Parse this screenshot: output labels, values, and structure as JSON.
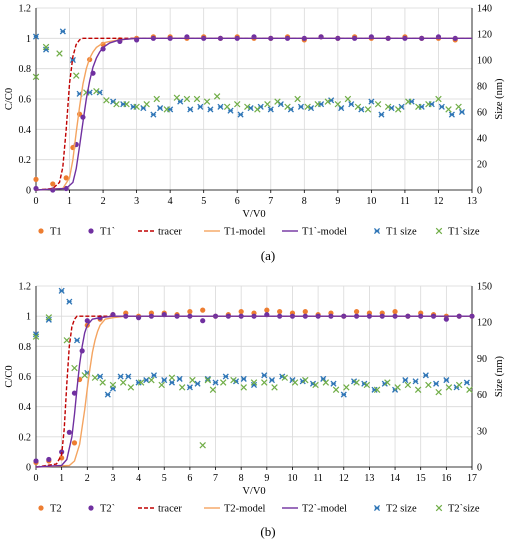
{
  "chart_data": [
    {
      "panel_label": "(a)",
      "type": "scatter",
      "xlabel": "V/V0",
      "ylabel": "C/C0",
      "y2label": "Size (nm)",
      "xlim": [
        0,
        13
      ],
      "xticks": [
        0,
        1,
        2,
        3,
        4,
        5,
        6,
        7,
        8,
        9,
        10,
        11,
        12,
        13
      ],
      "ylim": [
        0,
        1.2
      ],
      "yticks": [
        0,
        0.2,
        0.4,
        0.6,
        0.8,
        1,
        1.2
      ],
      "y2lim": [
        0,
        140
      ],
      "y2ticks": [
        0,
        20,
        40,
        60,
        80,
        100,
        120,
        140
      ],
      "grid": true,
      "legend_position": "bottom",
      "series": [
        {
          "name": "T1",
          "kind": "points",
          "marker": "circle",
          "color": "#ed7d31",
          "axis": "left",
          "x": [
            0,
            0.5,
            0.9,
            1.1,
            1.3,
            1.6,
            2,
            2.5,
            3,
            3.5,
            4,
            4.5,
            5,
            5.5,
            6,
            6.5,
            7,
            7.5,
            8,
            8.5,
            9,
            9.5,
            10,
            10.5,
            11,
            11.5,
            12,
            12.5
          ],
          "y": [
            0.07,
            0.04,
            0.08,
            0.28,
            0.5,
            0.86,
            0.96,
            0.99,
            1.0,
            1.01,
            1.01,
            1.0,
            1.01,
            1.0,
            1.01,
            1.0,
            1.0,
            1.01,
            0.99,
            1.01,
            1.0,
            1.01,
            1.0,
            1.0,
            1.01,
            1.0,
            1.0,
            0.99
          ]
        },
        {
          "name": "T1`",
          "kind": "points",
          "marker": "circle",
          "color": "#7030a0",
          "axis": "left",
          "x": [
            0,
            0.5,
            0.9,
            1.2,
            1.4,
            1.7,
            2,
            2.5,
            3,
            3.5,
            4,
            4.5,
            5,
            5.5,
            6,
            6.5,
            7,
            7.5,
            8,
            8.5,
            9,
            9.5,
            10,
            10.5,
            11,
            11.5,
            12,
            12.5
          ],
          "y": [
            0.01,
            0.0,
            0.01,
            0.3,
            0.48,
            0.77,
            0.93,
            0.98,
            0.99,
            1.0,
            1.0,
            1.01,
            1.0,
            1.0,
            1.0,
            1.01,
            1.0,
            1.0,
            1.0,
            1.01,
            1.0,
            1.0,
            1.01,
            1.0,
            1.0,
            1.0,
            1.01,
            1.0
          ]
        },
        {
          "name": "tracer",
          "kind": "line",
          "dash": true,
          "color": "#c00000",
          "axis": "left",
          "x": [
            0,
            0.5,
            0.7,
            0.8,
            0.9,
            1.0,
            1.1,
            1.2,
            1.3,
            1.4,
            1.5,
            1.7,
            2,
            13
          ],
          "y": [
            0,
            0.01,
            0.05,
            0.15,
            0.4,
            0.7,
            0.88,
            0.96,
            0.99,
            1.0,
            1.0,
            1.0,
            1.0,
            1.0
          ]
        },
        {
          "name": "T1-model",
          "kind": "line",
          "dash": false,
          "color": "#f4a460",
          "axis": "left",
          "x": [
            0,
            0.8,
            1.0,
            1.1,
            1.2,
            1.3,
            1.4,
            1.5,
            1.6,
            1.7,
            1.8,
            2.0,
            2.2,
            2.5,
            3,
            13
          ],
          "y": [
            0,
            0.01,
            0.08,
            0.2,
            0.38,
            0.55,
            0.7,
            0.8,
            0.87,
            0.91,
            0.94,
            0.97,
            0.98,
            0.99,
            1.0,
            1.0
          ]
        },
        {
          "name": "T1`-model",
          "kind": "line",
          "dash": false,
          "color": "#7030a0",
          "axis": "left",
          "x": [
            0,
            0.9,
            1.1,
            1.2,
            1.3,
            1.4,
            1.5,
            1.6,
            1.7,
            1.8,
            1.9,
            2.0,
            2.2,
            2.5,
            3,
            13
          ],
          "y": [
            0,
            0.01,
            0.05,
            0.14,
            0.29,
            0.45,
            0.6,
            0.72,
            0.81,
            0.87,
            0.91,
            0.94,
            0.97,
            0.99,
            1.0,
            1.0
          ]
        },
        {
          "name": "T1 size",
          "kind": "points",
          "marker": "star",
          "color": "#2e75b6",
          "axis": "right",
          "x": [
            0,
            0.3,
            0.8,
            1.1,
            1.3,
            1.6,
            1.9,
            2.3,
            2.6,
            2.9,
            3.2,
            3.5,
            3.7,
            4.0,
            4.3,
            4.6,
            4.9,
            5.2,
            5.5,
            5.8,
            6.1,
            6.4,
            6.7,
            7.0,
            7.3,
            7.6,
            7.9,
            8.2,
            8.5,
            8.8,
            9.1,
            9.4,
            9.7,
            10.0,
            10.3,
            10.6,
            10.9,
            11.2,
            11.5,
            11.8,
            12.1,
            12.4,
            12.7
          ],
          "y": [
            118,
            108,
            122,
            100,
            74,
            75,
            75,
            68,
            66,
            64,
            63,
            58,
            63,
            62,
            68,
            62,
            64,
            62,
            64,
            61,
            58,
            63,
            64,
            62,
            66,
            62,
            64,
            63,
            66,
            69,
            63,
            66,
            62,
            68,
            58,
            63,
            64,
            68,
            64,
            66,
            64,
            58,
            60
          ]
        },
        {
          "name": "T1`size",
          "kind": "points",
          "marker": "x",
          "color": "#70ad47",
          "axis": "right",
          "x": [
            0,
            0.3,
            0.7,
            1.2,
            1.5,
            1.8,
            2.1,
            2.4,
            2.7,
            3.0,
            3.3,
            3.6,
            3.9,
            4.2,
            4.5,
            4.8,
            5.1,
            5.4,
            5.7,
            6.0,
            6.3,
            6.6,
            6.9,
            7.2,
            7.5,
            7.8,
            8.1,
            8.4,
            8.7,
            9.0,
            9.3,
            9.6,
            9.9,
            10.2,
            10.5,
            10.8,
            11.1,
            11.4,
            11.7,
            12.0,
            12.3,
            12.6
          ],
          "y": [
            87,
            110,
            105,
            88,
            75,
            76,
            69,
            66,
            66,
            64,
            66,
            70,
            62,
            71,
            70,
            70,
            68,
            72,
            64,
            66,
            64,
            62,
            66,
            68,
            64,
            70,
            64,
            66,
            68,
            66,
            70,
            64,
            62,
            66,
            64,
            62,
            68,
            64,
            66,
            70,
            62,
            64
          ]
        }
      ]
    },
    {
      "panel_label": "(b)",
      "type": "scatter",
      "xlabel": "V/V0",
      "ylabel": "C/C0",
      "y2label": "Size (nm)",
      "xlim": [
        0,
        17
      ],
      "xticks": [
        0,
        1,
        2,
        3,
        4,
        5,
        6,
        7,
        8,
        9,
        10,
        11,
        12,
        13,
        14,
        15,
        16,
        17
      ],
      "ylim": [
        0,
        1.2
      ],
      "yticks": [
        0,
        0.2,
        0.4,
        0.6,
        0.8,
        1,
        1.2
      ],
      "y2lim": [
        0,
        150
      ],
      "y2ticks": [
        0,
        30,
        60,
        90,
        120,
        150
      ],
      "grid": true,
      "legend_position": "bottom",
      "series": [
        {
          "name": "T2",
          "kind": "points",
          "marker": "circle",
          "color": "#ed7d31",
          "axis": "left",
          "x": [
            0,
            0.5,
            1.0,
            1.5,
            1.7,
            2.0,
            2.5,
            3,
            3.5,
            4,
            4.5,
            5,
            5.5,
            6,
            6.5,
            7,
            7.5,
            8,
            8.5,
            9,
            9.5,
            10,
            10.5,
            11,
            11.5,
            12,
            12.5,
            13,
            13.5,
            14,
            14.5,
            15,
            15.5,
            16,
            16.5,
            17
          ],
          "y": [
            0.03,
            0.04,
            0.06,
            0.16,
            0.58,
            0.94,
            0.98,
            1.01,
            1.02,
            1.0,
            1.02,
            1.02,
            1.01,
            1.03,
            1.04,
            1.0,
            1.01,
            1.03,
            1.02,
            1.04,
            1.03,
            1.02,
            1.03,
            1.01,
            1.02,
            1.0,
            1.03,
            1.02,
            1.02,
            1.03,
            1.0,
            1.02,
            1.01,
            1.0,
            1.0,
            1.0
          ]
        },
        {
          "name": "T2`",
          "kind": "points",
          "marker": "circle",
          "color": "#7030a0",
          "axis": "left",
          "x": [
            0,
            0.5,
            1.0,
            1.3,
            1.5,
            1.8,
            2.0,
            2.5,
            3,
            3.5,
            4,
            4.5,
            5,
            5.5,
            6,
            6.5,
            7,
            7.5,
            8,
            8.5,
            9,
            9.5,
            10,
            10.5,
            11,
            11.5,
            12,
            12.5,
            13,
            13.5,
            14,
            14.5,
            15,
            15.5,
            16,
            16.5,
            17
          ],
          "y": [
            0.04,
            0.05,
            0.1,
            0.23,
            0.49,
            0.77,
            0.97,
            0.99,
            1.01,
            1.0,
            0.99,
            1.0,
            1.01,
            1.0,
            1.0,
            0.97,
            1.0,
            1.0,
            1.0,
            1.0,
            1.01,
            1.0,
            1.0,
            1.0,
            1.0,
            1.0,
            1.0,
            1.0,
            1.0,
            1.0,
            1.0,
            1.0,
            1.0,
            1.0,
            0.98,
            1.0,
            1.0
          ]
        },
        {
          "name": "tracer",
          "kind": "line",
          "dash": true,
          "color": "#c00000",
          "axis": "left",
          "x": [
            0,
            0.8,
            1.0,
            1.1,
            1.2,
            1.3,
            1.4,
            1.5,
            1.6,
            1.8,
            2,
            17
          ],
          "y": [
            0,
            0.02,
            0.08,
            0.25,
            0.55,
            0.8,
            0.93,
            0.98,
            1.0,
            1.0,
            1.0,
            1.0
          ]
        },
        {
          "name": "T2-model",
          "kind": "line",
          "dash": false,
          "color": "#f4a460",
          "axis": "left",
          "x": [
            0,
            1.3,
            1.5,
            1.7,
            1.9,
            2.0,
            2.1,
            2.2,
            2.3,
            2.4,
            2.5,
            2.7,
            3.0,
            3.5,
            17
          ],
          "y": [
            0,
            0.01,
            0.04,
            0.15,
            0.38,
            0.52,
            0.65,
            0.76,
            0.84,
            0.9,
            0.94,
            0.98,
            0.99,
            1.0,
            1.0
          ]
        },
        {
          "name": "T2`-model",
          "kind": "line",
          "dash": false,
          "color": "#7030a0",
          "axis": "left",
          "x": [
            0,
            1.0,
            1.2,
            1.4,
            1.5,
            1.6,
            1.7,
            1.8,
            1.9,
            2.0,
            2.2,
            2.5,
            3,
            17
          ],
          "y": [
            0,
            0.01,
            0.05,
            0.2,
            0.35,
            0.52,
            0.68,
            0.8,
            0.89,
            0.94,
            0.98,
            0.99,
            1.0,
            1.0
          ]
        },
        {
          "name": "T2 size",
          "kind": "points",
          "marker": "star",
          "color": "#2e75b6",
          "axis": "right",
          "x": [
            0,
            0.5,
            1.0,
            1.3,
            1.6,
            2.0,
            2.5,
            2.8,
            3.0,
            3.3,
            3.6,
            4.0,
            4.3,
            4.6,
            5.0,
            5.3,
            5.6,
            6.0,
            6.3,
            6.7,
            7.0,
            7.4,
            7.8,
            8.1,
            8.5,
            8.9,
            9.2,
            9.6,
            10.0,
            10.4,
            10.8,
            11.2,
            11.6,
            12.0,
            12.4,
            12.8,
            13.2,
            13.6,
            14.0,
            14.4,
            14.8,
            15.2,
            15.6,
            16.0,
            16.4,
            16.8
          ],
          "y": [
            110,
            122,
            146,
            137,
            105,
            78,
            75,
            60,
            65,
            75,
            75,
            70,
            72,
            76,
            72,
            70,
            73,
            66,
            69,
            73,
            70,
            75,
            71,
            73,
            68,
            76,
            72,
            75,
            72,
            71,
            69,
            73,
            69,
            60,
            71,
            69,
            64,
            69,
            64,
            72,
            71,
            76,
            69,
            72,
            66,
            70
          ]
        },
        {
          "name": "T2`size",
          "kind": "points",
          "marker": "x",
          "color": "#70ad47",
          "axis": "right",
          "x": [
            0,
            0.5,
            1.2,
            1.5,
            1.9,
            2.3,
            2.6,
            3.0,
            3.4,
            3.7,
            4.1,
            4.5,
            4.9,
            5.3,
            5.7,
            6.1,
            6.5,
            6.7,
            6.9,
            7.3,
            7.7,
            8.1,
            8.5,
            8.9,
            9.3,
            9.7,
            10.1,
            10.5,
            10.9,
            11.3,
            11.7,
            12.1,
            12.5,
            12.9,
            13.3,
            13.7,
            14.1,
            14.5,
            14.9,
            15.3,
            15.7,
            16.1,
            16.5,
            16.9
          ],
          "y": [
            108,
            124,
            105,
            82,
            76,
            74,
            70,
            68,
            70,
            66,
            70,
            72,
            68,
            74,
            66,
            72,
            18,
            72,
            64,
            70,
            72,
            66,
            70,
            70,
            66,
            74,
            70,
            72,
            68,
            70,
            64,
            66,
            70,
            68,
            64,
            70,
            66,
            68,
            64,
            68,
            62,
            66,
            68,
            64
          ]
        }
      ]
    }
  ]
}
